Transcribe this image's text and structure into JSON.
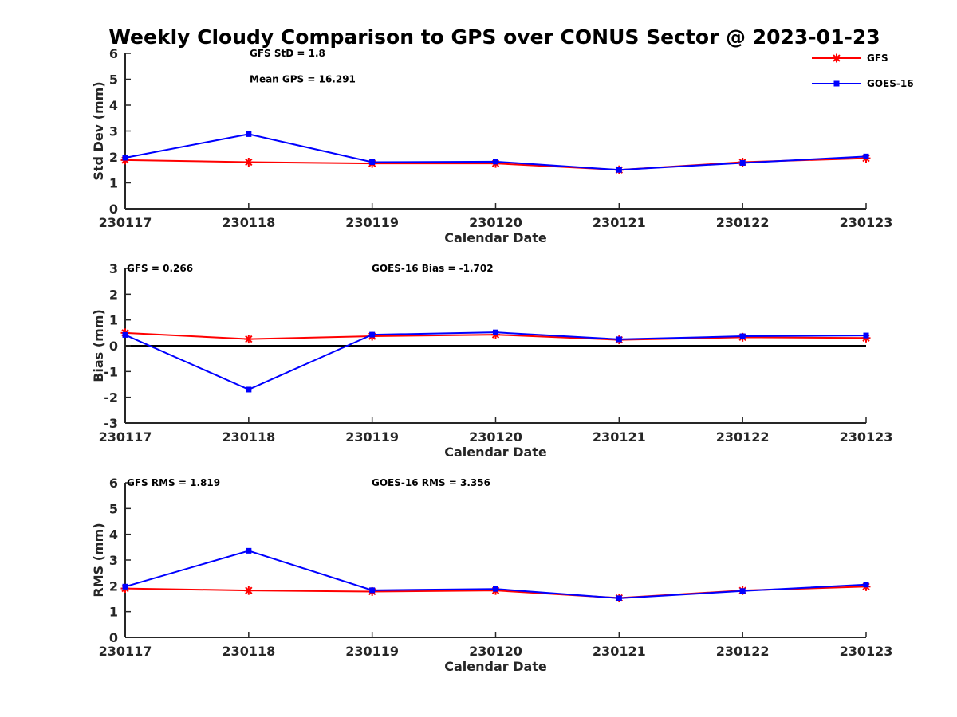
{
  "chart_data": {
    "title": "Weekly Cloudy Comparison to GPS over CONUS Sector @ 2023-01-23",
    "colors": {
      "GFS": "#ff0000",
      "GOES-16": "#0000ff"
    },
    "legend": {
      "placement": "top-right",
      "entries": [
        {
          "name": "GFS",
          "marker": "asterisk",
          "color": "#ff0000"
        },
        {
          "name": "GOES-16",
          "marker": "square",
          "color": "#0000ff"
        }
      ]
    },
    "panels": [
      {
        "type": "line",
        "ylabel": "Std Dev (mm)",
        "xlabel": "Calendar Date",
        "categories": [
          "230117",
          "230118",
          "230119",
          "230120",
          "230121",
          "230122",
          "230123"
        ],
        "ylim": [
          0,
          6
        ],
        "yticks": [
          "0",
          "1",
          "2",
          "3",
          "4",
          "5",
          "6"
        ],
        "zero_line": false,
        "annotations": [
          {
            "text": "GFS StD = 1.8",
            "at": [
              1,
              6
            ]
          },
          {
            "text": "Mean GPS = 16.291",
            "at": [
              1,
              5
            ]
          }
        ],
        "series": [
          {
            "name": "GFS",
            "values": [
              1.88,
              1.8,
              1.75,
              1.75,
              1.5,
              1.8,
              1.95
            ]
          },
          {
            "name": "GOES-16",
            "values": [
              1.97,
              2.88,
              1.8,
              1.82,
              1.5,
              1.77,
              2.02
            ]
          }
        ]
      },
      {
        "type": "line",
        "ylabel": "Bias (mm)",
        "xlabel": "Calendar Date",
        "categories": [
          "230117",
          "230118",
          "230119",
          "230120",
          "230121",
          "230122",
          "230123"
        ],
        "ylim": [
          -3,
          3
        ],
        "yticks": [
          "-3",
          "-2",
          "-1",
          "0",
          "1",
          "2",
          "3"
        ],
        "zero_line": true,
        "annotations": [
          {
            "text": "GFS = 0.266",
            "at": [
              0,
              3
            ]
          },
          {
            "text": "GOES-16 Bias  = -1.702",
            "at": [
              2,
              3
            ]
          }
        ],
        "series": [
          {
            "name": "GFS",
            "values": [
              0.5,
              0.26,
              0.37,
              0.43,
              0.23,
              0.33,
              0.3
            ]
          },
          {
            "name": "GOES-16",
            "values": [
              0.42,
              -1.7,
              0.43,
              0.52,
              0.25,
              0.37,
              0.4
            ]
          }
        ]
      },
      {
        "type": "line",
        "ylabel": "RMS (mm)",
        "xlabel": "Calendar Date",
        "categories": [
          "230117",
          "230118",
          "230119",
          "230120",
          "230121",
          "230122",
          "230123"
        ],
        "ylim": [
          0,
          6
        ],
        "yticks": [
          "0",
          "1",
          "2",
          "3",
          "4",
          "5",
          "6"
        ],
        "zero_line": false,
        "annotations": [
          {
            "text": "GFS RMS = 1.819",
            "at": [
              0,
              6
            ]
          },
          {
            "text": "GOES-16 RMS = 3.356",
            "at": [
              2,
              6
            ]
          }
        ],
        "series": [
          {
            "name": "GFS",
            "values": [
              1.9,
              1.82,
              1.78,
              1.82,
              1.53,
              1.82,
              1.97
            ]
          },
          {
            "name": "GOES-16",
            "values": [
              1.97,
              3.36,
              1.83,
              1.88,
              1.52,
              1.8,
              2.05
            ]
          }
        ]
      }
    ]
  }
}
